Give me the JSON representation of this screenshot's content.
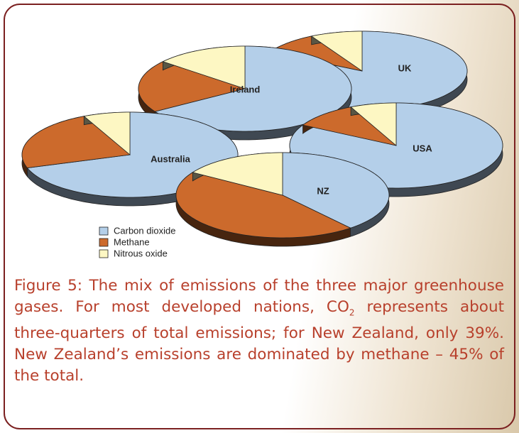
{
  "chart_data": {
    "type": "pie",
    "categories": [
      "Ireland",
      "UK",
      "Australia",
      "USA",
      "NZ"
    ],
    "series": [
      {
        "name": "Carbon dioxide",
        "color": "#b4cfe9",
        "values": [
          66,
          83,
          70,
          83,
          39
        ]
      },
      {
        "name": "Methane",
        "color": "#cc6a2c",
        "values": [
          20,
          9,
          23,
          10,
          45
        ]
      },
      {
        "name": "Nitrous oxide",
        "color": "#fdf7c3",
        "values": [
          14,
          8,
          7,
          7,
          16
        ]
      }
    ]
  },
  "caption": {
    "before": "Figure 5: The mix of emissions of the three major greenhouse gases. For most developed nations, CO",
    "sub": "2",
    "after": " represents about three-quarters of total emissions; for New Zealand, only 39%. New Zealand’s emissions are dominated by methane – 45% of the total."
  }
}
